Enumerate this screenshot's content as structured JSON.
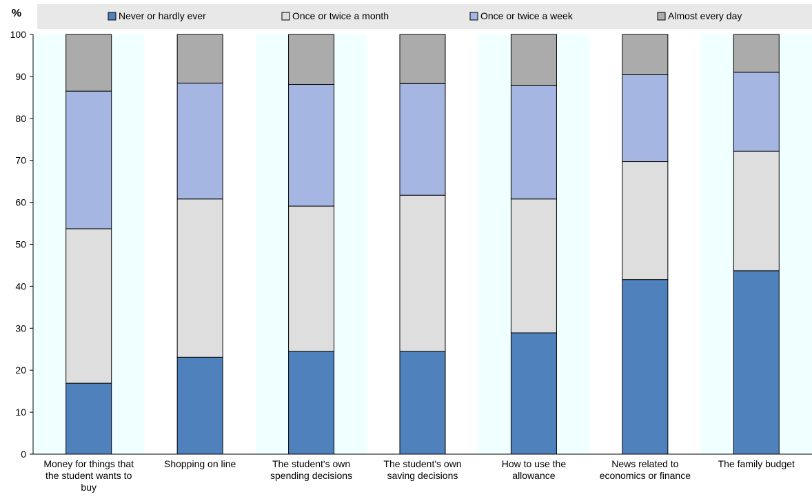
{
  "chart_data": {
    "type": "bar",
    "stacked": true,
    "ylabel": "%",
    "ylim": [
      0,
      100
    ],
    "yticks": [
      0,
      10,
      20,
      30,
      40,
      50,
      60,
      70,
      80,
      90,
      100
    ],
    "legend_position": "top",
    "categories": [
      [
        "Money for things that",
        "the student wants to",
        "buy"
      ],
      [
        "Shopping on line"
      ],
      [
        "The student's own",
        "spending decisions"
      ],
      [
        "The student's own",
        "saving decisions"
      ],
      [
        "How to use the",
        "allowance"
      ],
      [
        "News related to",
        "economics or finance"
      ],
      [
        "The family budget"
      ]
    ],
    "series": [
      {
        "name": "Never or hardly ever",
        "color": "#4f81bd",
        "values": [
          16.9,
          23.1,
          24.5,
          24.5,
          28.9,
          41.6,
          43.7
        ]
      },
      {
        "name": "Once or twice a month",
        "color": "#dedede",
        "values": [
          36.8,
          37.7,
          34.6,
          37.2,
          31.9,
          28.1,
          28.5
        ]
      },
      {
        "name": "Once or twice a week",
        "color": "#a6b6e2",
        "values": [
          32.8,
          27.6,
          29.0,
          26.6,
          27.0,
          20.7,
          18.8
        ]
      },
      {
        "name": "Almost every day",
        "color": "#ababab",
        "values": [
          13.5,
          11.6,
          11.9,
          11.7,
          12.2,
          9.6,
          9.0
        ]
      }
    ],
    "plot_background": "#f0ffff",
    "band_background": "#ffffff",
    "legend_background": "#e8e8e8"
  }
}
